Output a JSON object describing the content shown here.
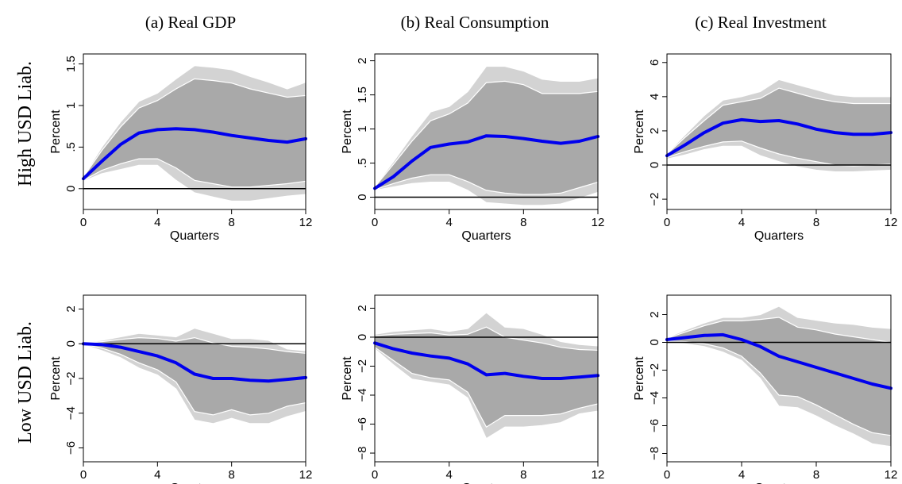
{
  "figure": {
    "column_titles": [
      "(a) Real GDP",
      "(b) Real Consumption",
      "(c) Real Investment"
    ],
    "row_labels": [
      "High USD Liab.",
      "Low USD Liab."
    ]
  },
  "colors": {
    "outer_band": "#d3d3d3",
    "inner_band": "#a9a9a9",
    "band_edge": "#ffffff",
    "irf_line": "#0000ee",
    "zero_line": "#000000"
  },
  "chart_data": [
    {
      "id": "high-gdp",
      "type": "area",
      "row": "High USD Liab.",
      "column": "(a) Real GDP",
      "xlabel": "Quarters",
      "ylabel": "Percent",
      "xlim": [
        0,
        12
      ],
      "ylim": [
        -0.25,
        1.62
      ],
      "xticks": [
        0,
        4,
        8,
        12
      ],
      "xtick_labels": [
        "0",
        "4",
        "8",
        "12"
      ],
      "yticks": [
        0,
        0.5,
        1,
        1.5
      ],
      "ytick_labels": [
        "0",
        ".5",
        "1",
        "1.5"
      ],
      "x": [
        0,
        1,
        2,
        3,
        4,
        5,
        6,
        7,
        8,
        9,
        10,
        11,
        12
      ],
      "point_estimate": [
        0.12,
        0.33,
        0.53,
        0.67,
        0.71,
        0.72,
        0.71,
        0.68,
        0.64,
        0.61,
        0.58,
        0.56,
        0.6
      ],
      "band_outer_upper": [
        0.15,
        0.5,
        0.8,
        1.05,
        1.15,
        1.32,
        1.48,
        1.46,
        1.43,
        1.35,
        1.28,
        1.2,
        1.28
      ],
      "band_outer_lower": [
        0.09,
        0.18,
        0.23,
        0.28,
        0.28,
        0.1,
        -0.05,
        -0.1,
        -0.15,
        -0.15,
        -0.12,
        -0.09,
        -0.07
      ],
      "band_inner_upper": [
        0.14,
        0.46,
        0.74,
        0.97,
        1.06,
        1.2,
        1.32,
        1.3,
        1.27,
        1.2,
        1.15,
        1.1,
        1.12
      ],
      "band_inner_lower": [
        0.1,
        0.22,
        0.3,
        0.36,
        0.36,
        0.25,
        0.1,
        0.06,
        0.02,
        0.02,
        0.04,
        0.06,
        0.09
      ]
    },
    {
      "id": "high-cons",
      "type": "area",
      "row": "High USD Liab.",
      "column": "(b) Real Consumption",
      "xlabel": "Quarters",
      "ylabel": "Percent",
      "xlim": [
        0,
        12
      ],
      "ylim": [
        -0.18,
        2.1
      ],
      "xticks": [
        0,
        4,
        8,
        12
      ],
      "xtick_labels": [
        "0",
        "4",
        "8",
        "12"
      ],
      "yticks": [
        0,
        0.5,
        1,
        1.5,
        2
      ],
      "ytick_labels": [
        "0",
        ".5",
        "1",
        "1.5",
        "2"
      ],
      "x": [
        0,
        1,
        2,
        3,
        4,
        5,
        6,
        7,
        8,
        9,
        10,
        11,
        12
      ],
      "point_estimate": [
        0.13,
        0.3,
        0.53,
        0.73,
        0.78,
        0.81,
        0.9,
        0.89,
        0.86,
        0.82,
        0.79,
        0.82,
        0.89
      ],
      "band_outer_upper": [
        0.16,
        0.52,
        0.9,
        1.25,
        1.33,
        1.55,
        1.92,
        1.92,
        1.85,
        1.73,
        1.7,
        1.7,
        1.75
      ],
      "band_outer_lower": [
        0.1,
        0.15,
        0.2,
        0.22,
        0.22,
        0.1,
        -0.08,
        -0.1,
        -0.12,
        -0.12,
        -0.1,
        -0.02,
        0.07
      ],
      "band_inner_upper": [
        0.15,
        0.48,
        0.82,
        1.12,
        1.22,
        1.38,
        1.68,
        1.7,
        1.65,
        1.52,
        1.52,
        1.52,
        1.55
      ],
      "band_inner_lower": [
        0.11,
        0.2,
        0.28,
        0.33,
        0.33,
        0.23,
        0.1,
        0.06,
        0.04,
        0.04,
        0.06,
        0.14,
        0.22
      ]
    },
    {
      "id": "high-inv",
      "type": "area",
      "row": "High USD Liab.",
      "column": "(c) Real Investment",
      "xlabel": "Quarters",
      "ylabel": "Percent",
      "xlim": [
        0,
        12
      ],
      "ylim": [
        -2.6,
        6.5
      ],
      "xticks": [
        0,
        4,
        8,
        12
      ],
      "xtick_labels": [
        "0",
        "4",
        "8",
        "12"
      ],
      "yticks": [
        -2,
        0,
        2,
        4,
        6
      ],
      "ytick_labels": [
        "−2",
        "0",
        "2",
        "4",
        "6"
      ],
      "x": [
        0,
        1,
        2,
        3,
        4,
        5,
        6,
        7,
        8,
        9,
        10,
        11,
        12
      ],
      "point_estimate": [
        0.55,
        1.2,
        1.9,
        2.45,
        2.65,
        2.55,
        2.6,
        2.4,
        2.1,
        1.9,
        1.8,
        1.8,
        1.9
      ],
      "band_outer_upper": [
        0.7,
        1.8,
        2.9,
        3.8,
        4.0,
        4.3,
        5.0,
        4.7,
        4.4,
        4.1,
        4.0,
        4.0,
        4.0
      ],
      "band_outer_lower": [
        0.35,
        0.6,
        0.9,
        1.1,
        1.1,
        0.55,
        0.2,
        -0.1,
        -0.3,
        -0.4,
        -0.4,
        -0.35,
        -0.3
      ],
      "band_inner_upper": [
        0.65,
        1.65,
        2.6,
        3.5,
        3.7,
        3.9,
        4.5,
        4.2,
        3.9,
        3.7,
        3.6,
        3.6,
        3.6
      ],
      "band_inner_lower": [
        0.45,
        0.8,
        1.1,
        1.35,
        1.4,
        1.0,
        0.65,
        0.4,
        0.2,
        0.0,
        -0.05,
        0.0,
        0.05
      ]
    },
    {
      "id": "low-gdp",
      "type": "area",
      "row": "Low USD Liab.",
      "column": "(a) Real GDP",
      "xlabel": "Quarters",
      "ylabel": "Percent",
      "xlim": [
        0,
        12
      ],
      "ylim": [
        -6.8,
        2.8
      ],
      "xticks": [
        0,
        4,
        8,
        12
      ],
      "xtick_labels": [
        "0",
        "4",
        "8",
        "12"
      ],
      "yticks": [
        -6,
        -4,
        -2,
        0,
        2
      ],
      "ytick_labels": [
        "−6",
        "−4",
        "−2",
        "0",
        "2"
      ],
      "x": [
        0,
        1,
        2,
        3,
        4,
        5,
        6,
        7,
        8,
        9,
        10,
        11,
        12
      ],
      "point_estimate": [
        0.0,
        -0.05,
        -0.2,
        -0.45,
        -0.7,
        -1.1,
        -1.75,
        -2.0,
        -2.0,
        -2.1,
        -2.15,
        -2.05,
        -1.95
      ],
      "band_outer_upper": [
        0.05,
        0.2,
        0.4,
        0.6,
        0.5,
        0.4,
        0.9,
        0.6,
        0.3,
        0.3,
        0.2,
        -0.3,
        -0.4
      ],
      "band_outer_lower": [
        -0.05,
        -0.4,
        -0.8,
        -1.4,
        -1.8,
        -2.6,
        -4.4,
        -4.6,
        -4.3,
        -4.6,
        -4.6,
        -4.2,
        -3.9
      ],
      "band_inner_upper": [
        0.03,
        0.12,
        0.25,
        0.35,
        0.3,
        0.15,
        0.35,
        0.05,
        -0.15,
        -0.2,
        -0.3,
        -0.45,
        -0.55
      ],
      "band_inner_lower": [
        -0.03,
        -0.25,
        -0.6,
        -1.1,
        -1.5,
        -2.2,
        -3.9,
        -4.1,
        -3.8,
        -4.1,
        -4.0,
        -3.6,
        -3.4
      ]
    },
    {
      "id": "low-cons",
      "type": "area",
      "row": "Low USD Liab.",
      "column": "(b) Real Consumption",
      "xlabel": "Quarters",
      "ylabel": "Percent",
      "xlim": [
        0,
        12
      ],
      "ylim": [
        -8.6,
        2.9
      ],
      "xticks": [
        0,
        4,
        8,
        12
      ],
      "xtick_labels": [
        "0",
        "4",
        "8",
        "12"
      ],
      "yticks": [
        -8,
        -6,
        -4,
        -2,
        0,
        2
      ],
      "ytick_labels": [
        "−8",
        "−6",
        "−4",
        "−2",
        "0",
        "2"
      ],
      "x": [
        0,
        1,
        2,
        3,
        4,
        5,
        6,
        7,
        8,
        9,
        10,
        11,
        12
      ],
      "point_estimate": [
        -0.4,
        -0.8,
        -1.1,
        -1.3,
        -1.45,
        -1.85,
        -2.6,
        -2.5,
        -2.7,
        -2.85,
        -2.85,
        -2.75,
        -2.65
      ],
      "band_outer_upper": [
        0.2,
        0.4,
        0.5,
        0.6,
        0.4,
        0.6,
        1.7,
        0.7,
        0.6,
        0.2,
        -0.3,
        -0.5,
        -0.6
      ],
      "band_outer_lower": [
        -0.8,
        -1.9,
        -2.9,
        -3.1,
        -3.3,
        -4.2,
        -7.0,
        -6.2,
        -6.2,
        -6.1,
        -5.9,
        -5.3,
        -5.1
      ],
      "band_inner_upper": [
        0.1,
        0.2,
        0.25,
        0.3,
        0.15,
        0.2,
        0.7,
        0.0,
        -0.2,
        -0.4,
        -0.7,
        -0.85,
        -0.9
      ],
      "band_inner_lower": [
        -0.7,
        -1.6,
        -2.5,
        -2.8,
        -2.95,
        -3.8,
        -6.2,
        -5.4,
        -5.4,
        -5.4,
        -5.3,
        -4.9,
        -4.6
      ]
    },
    {
      "id": "low-inv",
      "type": "area",
      "row": "Low USD Liab.",
      "column": "(c) Real Investment",
      "xlabel": "Quarters",
      "ylabel": "Percent",
      "xlim": [
        0,
        12
      ],
      "ylim": [
        -8.6,
        3.4
      ],
      "xticks": [
        0,
        4,
        8,
        12
      ],
      "xtick_labels": [
        "0",
        "4",
        "8",
        "12"
      ],
      "yticks": [
        -8,
        -6,
        -4,
        -2,
        0,
        2
      ],
      "ytick_labels": [
        "−8",
        "−6",
        "−4",
        "−2",
        "0",
        "2"
      ],
      "x": [
        0,
        1,
        2,
        3,
        4,
        5,
        6,
        7,
        8,
        9,
        10,
        11,
        12
      ],
      "point_estimate": [
        0.2,
        0.35,
        0.5,
        0.55,
        0.2,
        -0.3,
        -1.0,
        -1.4,
        -1.8,
        -2.2,
        -2.6,
        -3.0,
        -3.3
      ],
      "band_outer_upper": [
        0.35,
        0.9,
        1.4,
        1.8,
        1.8,
        2.0,
        2.6,
        1.8,
        1.6,
        1.4,
        1.3,
        1.1,
        1.0
      ],
      "band_outer_lower": [
        0.05,
        -0.1,
        -0.3,
        -0.7,
        -1.3,
        -2.6,
        -4.6,
        -4.7,
        -5.3,
        -6.0,
        -6.6,
        -7.3,
        -7.5
      ],
      "band_inner_upper": [
        0.3,
        0.75,
        1.2,
        1.55,
        1.55,
        1.65,
        1.8,
        1.1,
        0.9,
        0.6,
        0.4,
        0.2,
        0.0
      ],
      "band_inner_lower": [
        0.1,
        0.05,
        -0.1,
        -0.4,
        -1.0,
        -2.2,
        -3.8,
        -3.9,
        -4.5,
        -5.2,
        -5.9,
        -6.5,
        -6.7
      ]
    }
  ]
}
